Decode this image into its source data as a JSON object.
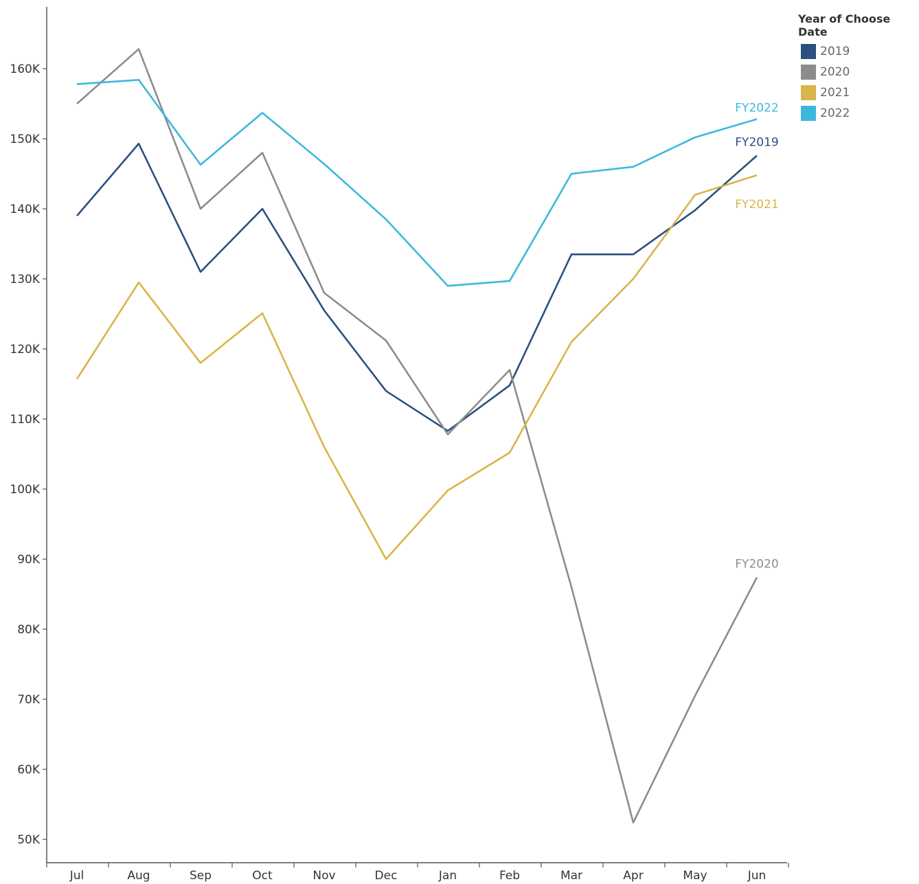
{
  "chart_data": {
    "type": "line",
    "categories": [
      "Jul",
      "Aug",
      "Sep",
      "Oct",
      "Nov",
      "Dec",
      "Jan",
      "Feb",
      "Mar",
      "Apr",
      "May",
      "Jun"
    ],
    "ylim": [
      47000,
      170000
    ],
    "yticks": [
      50000,
      60000,
      70000,
      80000,
      90000,
      100000,
      110000,
      120000,
      130000,
      140000,
      150000,
      160000
    ],
    "ytick_labels": [
      "50K",
      "60K",
      "70K",
      "80K",
      "90K",
      "100K",
      "110K",
      "120K",
      "130K",
      "140K",
      "150K",
      "160K"
    ],
    "legend": {
      "title": "Year of Choose Date",
      "placement": "top-right"
    },
    "series": [
      {
        "name": "2019",
        "end_label": "FY2019",
        "color": "#2b4f7e",
        "values": [
          139000,
          149300,
          131000,
          140000,
          125500,
          114000,
          108300,
          114800,
          133500,
          133500,
          139800,
          147600
        ]
      },
      {
        "name": "2020",
        "end_label": "FY2020",
        "color": "#8c8c8c",
        "values": [
          155000,
          162800,
          140000,
          148000,
          128000,
          121200,
          107800,
          117000,
          86000,
          52400,
          70500,
          87400
        ]
      },
      {
        "name": "2021",
        "end_label": "FY2021",
        "color": "#d9b44a",
        "values": [
          115700,
          129500,
          118000,
          125100,
          106000,
          90000,
          99800,
          105200,
          121000,
          130000,
          142000,
          144800
        ]
      },
      {
        "name": "2022",
        "end_label": "FY2022",
        "color": "#3db8dd",
        "values": [
          157800,
          158400,
          146300,
          153700,
          146400,
          138500,
          129000,
          129700,
          145000,
          146000,
          150200,
          152800
        ]
      }
    ]
  }
}
